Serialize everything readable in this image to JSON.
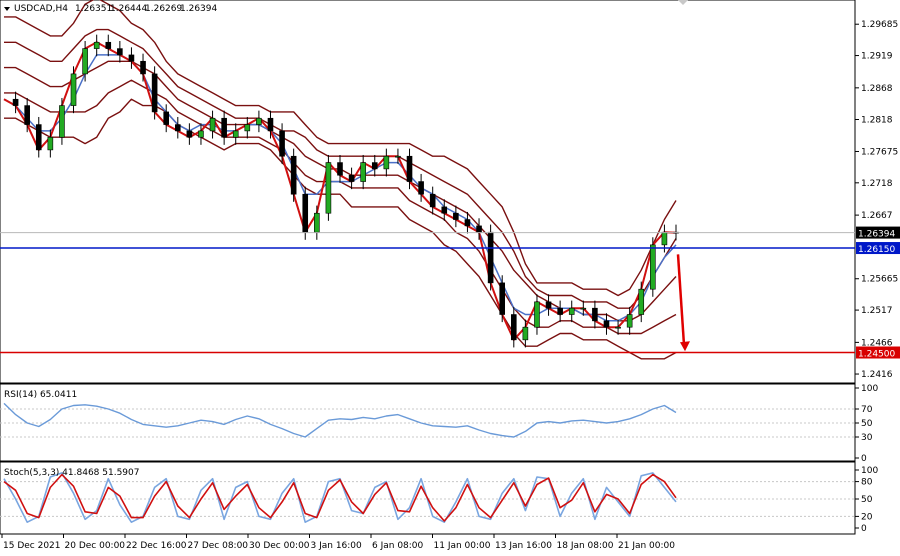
{
  "chart_data": [
    {
      "type": "line",
      "title": "USDCAD,H4",
      "ohlc": {
        "open": "1.26351",
        "high": "1.26444",
        "low": "1.26269",
        "close": "1.26394"
      },
      "x_ticks": [
        "15 Dec 2021",
        "20 Dec 00:00",
        "22 Dec 16:00",
        "27 Dec 08:00",
        "30 Dec 00:00",
        "3 Jan 16:00",
        "6 Jan 08:00",
        "11 Jan 00:00",
        "13 Jan 16:00",
        "18 Jan 08:00",
        "21 Jan 00:00"
      ],
      "y_ticks": [
        1.29685,
        1.2919,
        1.2868,
        1.2818,
        1.27675,
        1.2718,
        1.2667,
        1.25665,
        1.2517,
        1.2466,
        1.2416
      ],
      "ylim": [
        1.2405,
        1.3002
      ],
      "price_label": "1.26394",
      "current_price": 1.26394,
      "levels": [
        {
          "value": 1.2615,
          "label": "1.26150",
          "color": "#0018c8"
        },
        {
          "value": 1.245,
          "label": "1.24500",
          "color": "#d80000"
        }
      ],
      "series": [
        {
          "values": [
            1.285,
            1.284,
            1.281,
            1.277,
            1.279,
            1.284,
            1.289,
            1.293,
            1.294,
            1.293,
            1.292,
            1.291,
            1.289,
            1.283,
            1.281,
            1.28,
            1.279,
            1.28,
            1.282,
            1.279,
            1.28,
            1.281,
            1.282,
            1.28,
            1.276,
            1.27,
            1.264,
            1.267,
            1.275,
            1.273,
            1.272,
            1.275,
            1.274,
            1.276,
            1.276,
            1.272,
            1.27,
            1.268,
            1.267,
            1.266,
            1.265,
            1.264,
            1.256,
            1.251,
            1.247,
            1.249,
            1.253,
            1.252,
            1.251,
            1.252,
            1.252,
            1.25,
            1.249,
            1.249,
            1.251,
            1.255,
            1.262,
            1.264,
            1.2639
          ]
        },
        {
          "values": [
            1.285,
            1.284,
            1.282,
            1.28,
            1.28,
            1.282,
            1.285,
            1.289,
            1.292,
            1.292,
            1.292,
            1.291,
            1.289,
            1.285,
            1.283,
            1.281,
            1.28,
            1.281,
            1.281,
            1.28,
            1.28,
            1.281,
            1.281,
            1.28,
            1.278,
            1.274,
            1.27,
            1.27,
            1.272,
            1.272,
            1.272,
            1.273,
            1.274,
            1.275,
            1.275,
            1.273,
            1.271,
            1.27,
            1.268,
            1.267,
            1.266,
            1.264,
            1.26,
            1.256,
            1.252,
            1.251,
            1.251,
            1.252,
            1.252,
            1.252,
            1.251,
            1.251,
            1.25,
            1.25,
            1.251,
            1.253,
            1.257,
            1.26,
            1.262
          ]
        },
        {
          "values": [
            1.29,
            1.29,
            1.289,
            1.288,
            1.287,
            1.287,
            1.288,
            1.289,
            1.29,
            1.291,
            1.291,
            1.291,
            1.29,
            1.289,
            1.287,
            1.285,
            1.284,
            1.283,
            1.282,
            1.281,
            1.281,
            1.281,
            1.281,
            1.28,
            1.279,
            1.278,
            1.276,
            1.275,
            1.274,
            1.274,
            1.273,
            1.273,
            1.273,
            1.273,
            1.273,
            1.272,
            1.271,
            1.27,
            1.269,
            1.268,
            1.267,
            1.265,
            1.263,
            1.261,
            1.258,
            1.256,
            1.254,
            1.253,
            1.252,
            1.252,
            1.251,
            1.251,
            1.251,
            1.25,
            1.25,
            1.251,
            1.253,
            1.255,
            1.257
          ]
        },
        {
          "values": [
            1.298,
            1.298,
            1.297,
            1.296,
            1.295,
            1.295,
            1.297,
            1.3,
            1.301,
            1.3,
            1.299,
            1.297,
            1.296,
            1.294,
            1.291,
            1.289,
            1.288,
            1.287,
            1.286,
            1.285,
            1.284,
            1.284,
            1.284,
            1.283,
            1.283,
            1.283,
            1.281,
            1.279,
            1.278,
            1.278,
            1.278,
            1.278,
            1.278,
            1.278,
            1.278,
            1.278,
            1.277,
            1.276,
            1.276,
            1.275,
            1.274,
            1.272,
            1.27,
            1.268,
            1.264,
            1.259,
            1.256,
            1.256,
            1.256,
            1.256,
            1.255,
            1.255,
            1.255,
            1.254,
            1.255,
            1.258,
            1.262,
            1.266,
            1.269
          ]
        },
        {
          "values": [
            1.282,
            1.282,
            1.281,
            1.28,
            1.279,
            1.279,
            1.279,
            1.278,
            1.279,
            1.282,
            1.283,
            1.285,
            1.284,
            1.284,
            1.283,
            1.281,
            1.28,
            1.279,
            1.278,
            1.277,
            1.278,
            1.278,
            1.278,
            1.277,
            1.275,
            1.273,
            1.271,
            1.27,
            1.27,
            1.27,
            1.268,
            1.268,
            1.268,
            1.268,
            1.268,
            1.266,
            1.265,
            1.264,
            1.262,
            1.261,
            1.259,
            1.257,
            1.254,
            1.251,
            1.248,
            1.246,
            1.246,
            1.247,
            1.248,
            1.248,
            1.247,
            1.247,
            1.247,
            1.246,
            1.245,
            1.244,
            1.244,
            1.244,
            1.245
          ]
        },
        {
          "values": [
            1.294,
            1.294,
            1.293,
            1.292,
            1.291,
            1.291,
            1.293,
            1.295,
            1.296,
            1.296,
            1.295,
            1.294,
            1.293,
            1.291,
            1.289,
            1.287,
            1.286,
            1.285,
            1.284,
            1.283,
            1.282,
            1.282,
            1.282,
            1.281,
            1.28,
            1.28,
            1.279,
            1.277,
            1.276,
            1.276,
            1.276,
            1.276,
            1.276,
            1.276,
            1.276,
            1.275,
            1.274,
            1.273,
            1.272,
            1.271,
            1.27,
            1.268,
            1.266,
            1.264,
            1.261,
            1.257,
            1.255,
            1.254,
            1.254,
            1.254,
            1.253,
            1.253,
            1.253,
            1.252,
            1.252,
            1.254,
            1.257,
            1.26,
            1.263
          ]
        },
        {
          "values": [
            1.286,
            1.286,
            1.285,
            1.284,
            1.283,
            1.283,
            1.283,
            1.283,
            1.284,
            1.286,
            1.287,
            1.288,
            1.287,
            1.286,
            1.285,
            1.283,
            1.282,
            1.281,
            1.28,
            1.279,
            1.279,
            1.279,
            1.279,
            1.278,
            1.277,
            1.275,
            1.273,
            1.272,
            1.272,
            1.272,
            1.271,
            1.271,
            1.271,
            1.271,
            1.271,
            1.269,
            1.268,
            1.267,
            1.266,
            1.264,
            1.263,
            1.261,
            1.258,
            1.255,
            1.252,
            1.25,
            1.249,
            1.249,
            1.25,
            1.25,
            1.249,
            1.249,
            1.249,
            1.248,
            1.248,
            1.248,
            1.249,
            1.25,
            1.251
          ]
        }
      ]
    },
    {
      "type": "line",
      "title": "RSI(14) 65.0411",
      "y_ticks": [
        100,
        70,
        50,
        30,
        0
      ],
      "ylim": [
        0,
        100
      ],
      "series": [
        {
          "values": [
            78,
            62,
            50,
            45,
            55,
            70,
            75,
            76,
            74,
            70,
            64,
            55,
            48,
            46,
            44,
            46,
            50,
            54,
            52,
            48,
            55,
            60,
            56,
            48,
            42,
            35,
            30,
            42,
            54,
            56,
            55,
            58,
            56,
            60,
            62,
            56,
            50,
            46,
            45,
            44,
            46,
            40,
            35,
            32,
            30,
            38,
            50,
            52,
            50,
            53,
            54,
            52,
            50,
            52,
            56,
            62,
            70,
            75,
            65
          ]
        }
      ]
    },
    {
      "type": "line",
      "title": "Stoch(5,3,3) 41.8468 51.5907",
      "y_ticks": [
        100,
        80,
        50,
        20,
        0
      ],
      "ylim": [
        0,
        100
      ],
      "series": [
        {
          "values": [
            85,
            50,
            10,
            20,
            88,
            95,
            60,
            15,
            30,
            85,
            40,
            10,
            20,
            70,
            85,
            20,
            15,
            65,
            85,
            15,
            70,
            80,
            20,
            15,
            60,
            85,
            10,
            20,
            80,
            85,
            30,
            25,
            70,
            80,
            15,
            35,
            85,
            20,
            10,
            45,
            85,
            20,
            15,
            60,
            85,
            30,
            88,
            85,
            20,
            60,
            85,
            15,
            70,
            45,
            20,
            90,
            95,
            70,
            45
          ]
        },
        {
          "values": [
            80,
            65,
            25,
            18,
            70,
            92,
            72,
            28,
            25,
            70,
            55,
            18,
            18,
            55,
            80,
            38,
            18,
            50,
            78,
            32,
            55,
            75,
            35,
            18,
            45,
            78,
            25,
            18,
            65,
            83,
            45,
            25,
            58,
            78,
            30,
            28,
            72,
            35,
            12,
            35,
            75,
            35,
            18,
            48,
            78,
            38,
            75,
            86,
            35,
            48,
            78,
            28,
            58,
            50,
            25,
            75,
            92,
            80,
            52
          ]
        }
      ]
    }
  ]
}
